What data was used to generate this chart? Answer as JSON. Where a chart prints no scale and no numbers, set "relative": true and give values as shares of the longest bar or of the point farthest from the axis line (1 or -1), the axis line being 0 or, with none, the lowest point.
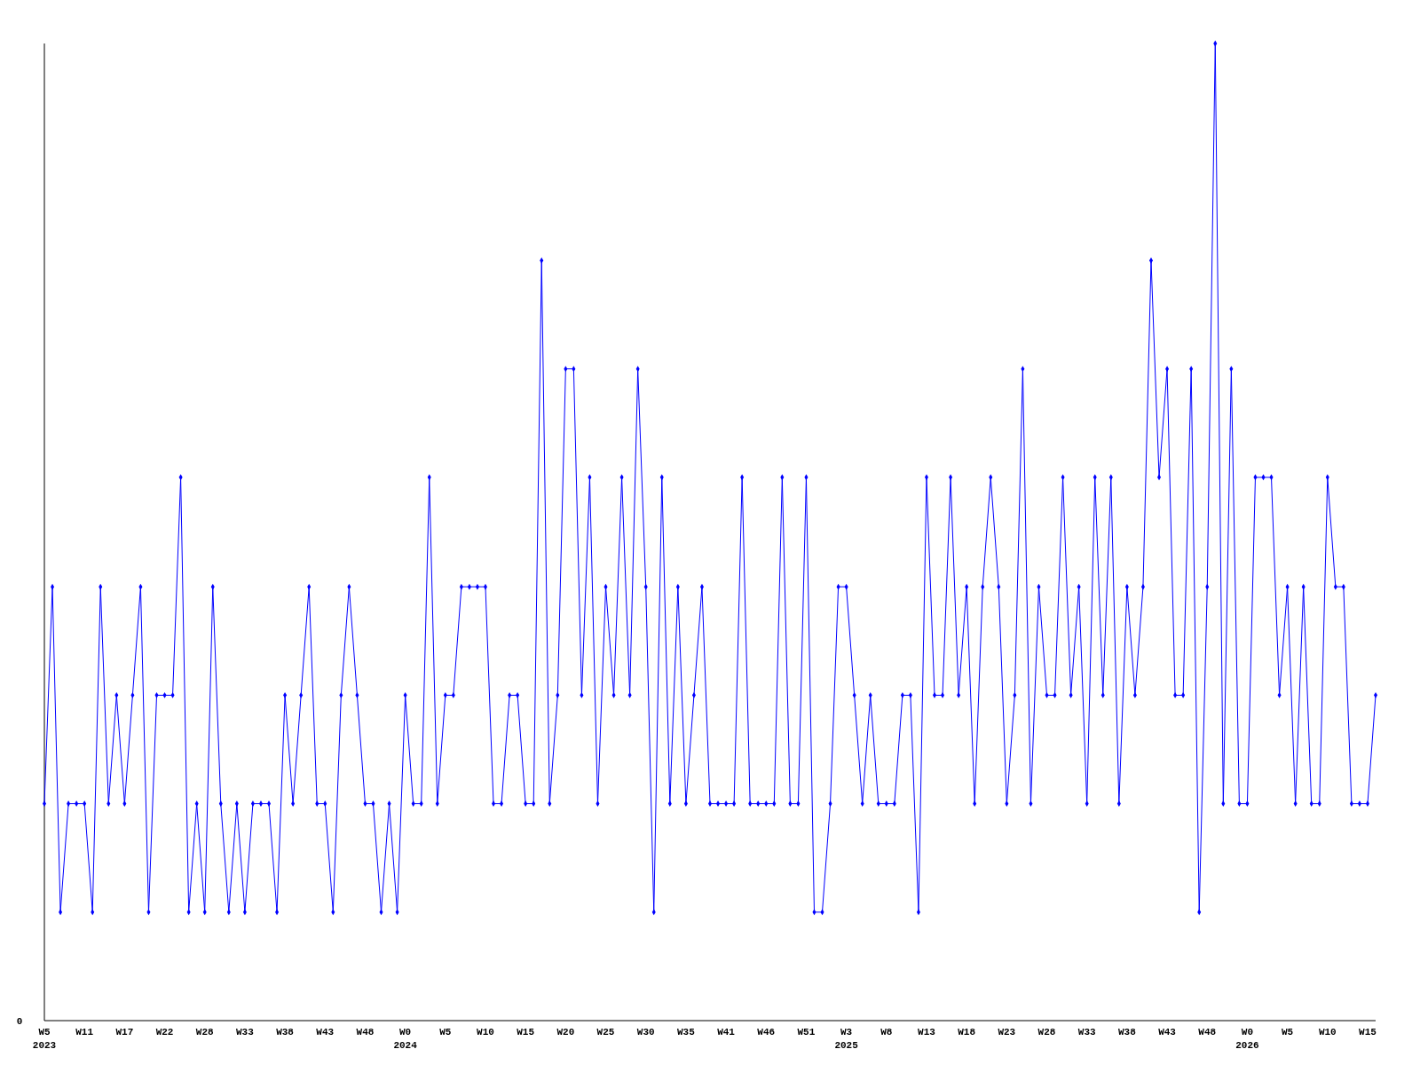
{
  "chart_data": {
    "type": "line",
    "relative": true,
    "marker": "diamond",
    "annotations": [
      "0"
    ],
    "categories": [
      "W5\n2023",
      null,
      null,
      null,
      null,
      "W11",
      null,
      null,
      null,
      null,
      "W17",
      null,
      null,
      null,
      null,
      "W22",
      null,
      null,
      null,
      null,
      "W28",
      null,
      null,
      null,
      null,
      "W33",
      null,
      null,
      null,
      null,
      "W38",
      null,
      null,
      null,
      null,
      "W43",
      null,
      null,
      null,
      null,
      "W48",
      null,
      null,
      null,
      null,
      "W0\n2024",
      null,
      null,
      null,
      null,
      "W5",
      null,
      null,
      null,
      null,
      "W10",
      null,
      null,
      null,
      null,
      "W15",
      null,
      null,
      null,
      null,
      "W20",
      null,
      null,
      null,
      null,
      "W25",
      null,
      null,
      null,
      null,
      "W30",
      null,
      null,
      null,
      null,
      "W35",
      null,
      null,
      null,
      null,
      "W41",
      null,
      null,
      null,
      null,
      "W46",
      null,
      null,
      null,
      null,
      "W51",
      null,
      null,
      null,
      null,
      "W3\n2025",
      null,
      null,
      null,
      null,
      "W8",
      null,
      null,
      null,
      null,
      "W13",
      null,
      null,
      null,
      null,
      "W18",
      null,
      null,
      null,
      null,
      "W23",
      null,
      null,
      null,
      null,
      "W28",
      null,
      null,
      null,
      null,
      "W33",
      null,
      null,
      null,
      null,
      "W38",
      null,
      null,
      null,
      null,
      "W43",
      null,
      null,
      null,
      null,
      "W48",
      null,
      null,
      null,
      null,
      "W0\n2026",
      null,
      null,
      null,
      null,
      "W5",
      null,
      null,
      null,
      null,
      "W10",
      null,
      null,
      null,
      null,
      "W15",
      null
    ],
    "series": [
      {
        "color": "#0000ff",
        "values": [
          0.222,
          0.444,
          0.111,
          0.222,
          0.222,
          0.222,
          0.111,
          0.444,
          0.222,
          0.333,
          0.222,
          0.333,
          0.444,
          0.111,
          0.333,
          0.333,
          0.333,
          0.556,
          0.111,
          0.222,
          0.111,
          0.444,
          0.222,
          0.111,
          0.222,
          0.111,
          0.222,
          0.222,
          0.222,
          0.111,
          0.333,
          0.222,
          0.333,
          0.444,
          0.222,
          0.222,
          0.111,
          0.333,
          0.444,
          0.333,
          0.222,
          0.222,
          0.111,
          0.222,
          0.111,
          0.333,
          0.222,
          0.222,
          0.556,
          0.222,
          0.333,
          0.333,
          0.444,
          0.444,
          0.444,
          0.444,
          0.222,
          0.222,
          0.333,
          0.333,
          0.222,
          0.222,
          0.778,
          0.222,
          0.333,
          0.667,
          0.667,
          0.333,
          0.556,
          0.222,
          0.444,
          0.333,
          0.556,
          0.333,
          0.667,
          0.444,
          0.111,
          0.556,
          0.222,
          0.444,
          0.222,
          0.333,
          0.444,
          0.222,
          0.222,
          0.222,
          0.222,
          0.556,
          0.222,
          0.222,
          0.222,
          0.222,
          0.556,
          0.222,
          0.222,
          0.556,
          0.111,
          0.111,
          0.222,
          0.444,
          0.444,
          0.333,
          0.222,
          0.333,
          0.222,
          0.222,
          0.222,
          0.333,
          0.333,
          0.111,
          0.556,
          0.333,
          0.333,
          0.556,
          0.333,
          0.444,
          0.222,
          0.444,
          0.556,
          0.444,
          0.222,
          0.333,
          0.667,
          0.222,
          0.444,
          0.333,
          0.333,
          0.556,
          0.333,
          0.444,
          0.222,
          0.556,
          0.333,
          0.556,
          0.222,
          0.444,
          0.333,
          0.444,
          0.778,
          0.556,
          0.667,
          0.333,
          0.333,
          0.667,
          0.111,
          0.444,
          1,
          0.222,
          0.667,
          0.222,
          0.222,
          0.556,
          0.556,
          0.556,
          0.333,
          0.444,
          0.222,
          0.444,
          0.222,
          0.222,
          0.556,
          0.444,
          0.444,
          0.222,
          0.222,
          0.222,
          0.333
        ]
      }
    ]
  }
}
